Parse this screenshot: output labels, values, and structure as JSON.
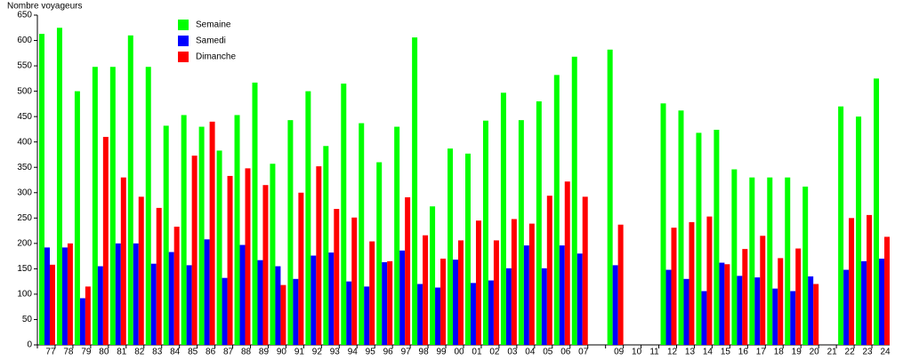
{
  "chart_data": {
    "type": "bar",
    "y_label": "Nombre voyageurs",
    "categories": [
      "77",
      "78",
      "79",
      "80",
      "81",
      "82",
      "83",
      "84",
      "85",
      "86",
      "87",
      "88",
      "89",
      "90",
      "91",
      "92",
      "93",
      "94",
      "95",
      "96",
      "97",
      "98",
      "99",
      "00",
      "01",
      "02",
      "03",
      "04",
      "05",
      "06",
      "07",
      null,
      "09",
      "10",
      "11",
      "12",
      "13",
      "14",
      "15",
      "16",
      "17",
      "18",
      "19",
      "20",
      "21",
      "22",
      "23",
      "24"
    ],
    "series": [
      {
        "name": "Semaine",
        "color": "#00ff00",
        "values": [
          613,
          625,
          500,
          548,
          548,
          610,
          548,
          432,
          453,
          430,
          383,
          453,
          517,
          357,
          443,
          500,
          392,
          515,
          437,
          360,
          430,
          606,
          273,
          387,
          377,
          442,
          497,
          443,
          480,
          532,
          568,
          null,
          582,
          null,
          null,
          476,
          462,
          418,
          424,
          346,
          330,
          330,
          330,
          312,
          null,
          470,
          450,
          525
        ]
      },
      {
        "name": "Samedi",
        "color": "#0000ff",
        "values": [
          192,
          192,
          92,
          155,
          200,
          200,
          160,
          183,
          157,
          208,
          132,
          197,
          167,
          155,
          130,
          176,
          182,
          125,
          115,
          163,
          186,
          120,
          113,
          168,
          122,
          127,
          151,
          196,
          151,
          196,
          180,
          null,
          157,
          null,
          null,
          148,
          130,
          106,
          162,
          136,
          133,
          111,
          106,
          135,
          null,
          148,
          165,
          170
        ]
      },
      {
        "name": "Dimanche",
        "color": "#ff0000",
        "values": [
          158,
          200,
          115,
          410,
          330,
          292,
          270,
          233,
          373,
          440,
          333,
          348,
          315,
          118,
          300,
          352,
          268,
          251,
          204,
          165,
          291,
          216,
          170,
          206,
          245,
          206,
          248,
          239,
          294,
          322,
          292,
          null,
          237,
          null,
          null,
          231,
          242,
          253,
          159,
          189,
          215,
          171,
          190,
          120,
          null,
          250,
          256,
          213
        ]
      }
    ],
    "ylim": [
      0,
      650
    ],
    "yticks": [
      0,
      50,
      100,
      150,
      200,
      250,
      300,
      350,
      400,
      450,
      500,
      550,
      600,
      650
    ],
    "legend": "top-left"
  }
}
